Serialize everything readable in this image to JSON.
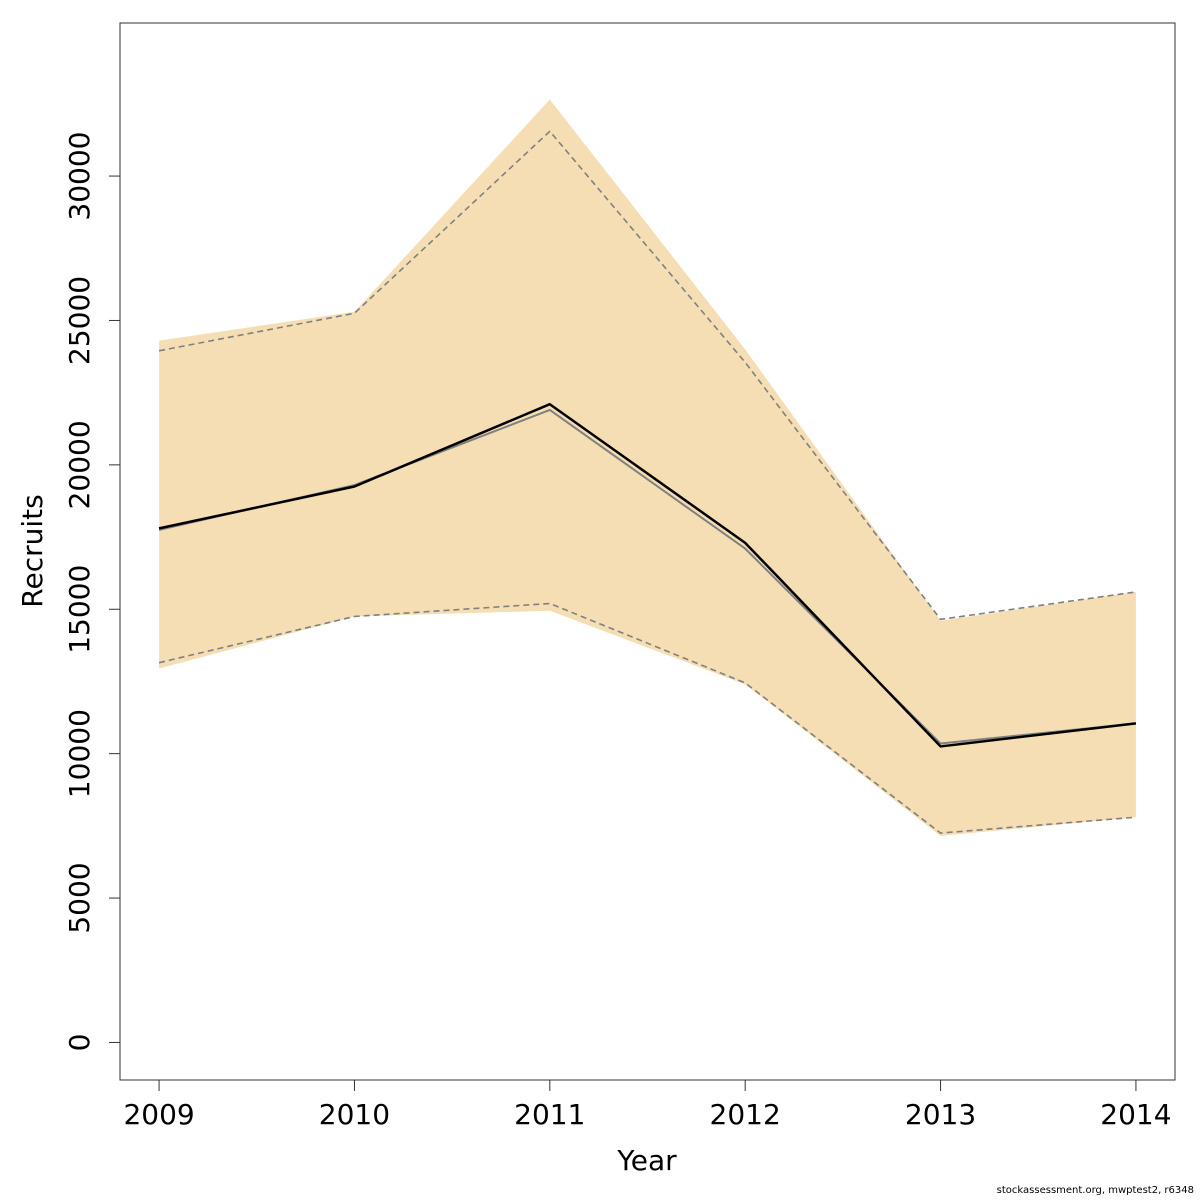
{
  "chart_data": {
    "type": "area",
    "xlabel": "Year",
    "ylabel": "Recruits",
    "x": [
      2009,
      2010,
      2011,
      2012,
      2013,
      2014
    ],
    "xlim": [
      2008.8,
      2014.2
    ],
    "ylim": [
      -1300,
      35300
    ],
    "yticks": [
      0,
      5000,
      10000,
      15000,
      20000,
      25000,
      30000
    ],
    "grid": false,
    "legend": "none",
    "series": [
      {
        "role": "band",
        "upper": [
          24300,
          25300,
          32650,
          24000,
          14600,
          15600
        ],
        "lower": [
          12950,
          14750,
          14950,
          12400,
          7150,
          7800
        ],
        "color": "#f5deb3"
      },
      {
        "role": "upper-dashed",
        "values": [
          23950,
          25250,
          31550,
          23550,
          14650,
          15600
        ],
        "color": "#808080"
      },
      {
        "role": "lower-dashed",
        "values": [
          13150,
          14750,
          15200,
          12450,
          7250,
          7800
        ],
        "color": "#808080"
      },
      {
        "role": "gray-line",
        "values": [
          17750,
          19300,
          21900,
          17100,
          10350,
          11050
        ],
        "color": "#808080"
      },
      {
        "role": "main-line",
        "values": [
          17800,
          19250,
          22100,
          17300,
          10250,
          11050
        ],
        "color": "#000000"
      }
    ]
  },
  "footer": "stockassessment.org, mwptest2, r6348"
}
